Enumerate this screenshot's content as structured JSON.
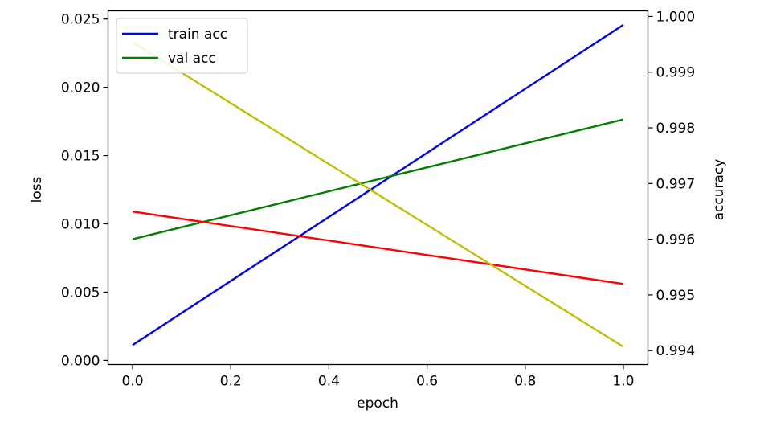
{
  "chart_data": {
    "type": "line",
    "title": "",
    "xlabel": "epoch",
    "ylabel_left": "loss",
    "ylabel_right": "accuracy",
    "x": [
      0.0,
      1.0
    ],
    "xlim": [
      -0.05,
      1.05
    ],
    "ylim_left": [
      -0.0003,
      0.0256
    ],
    "ylim_right": [
      0.99375,
      1.0001
    ],
    "xticks": [
      "0.0",
      "0.2",
      "0.4",
      "0.6",
      "0.8",
      "1.0"
    ],
    "yticks_left": [
      "0.000",
      "0.005",
      "0.010",
      "0.015",
      "0.020",
      "0.025"
    ],
    "yticks_right": [
      "0.994",
      "0.995",
      "0.996",
      "0.997",
      "0.998",
      "0.999",
      "1.000"
    ],
    "grid": false,
    "legend": {
      "placement": "top-left",
      "entries": [
        "train acc",
        "val acc"
      ]
    },
    "series": [
      {
        "name": "train acc",
        "axis": "right",
        "color": "#0000ff",
        "values": [
          0.9941,
          0.99985
        ]
      },
      {
        "name": "val acc",
        "axis": "right",
        "color": "#008000",
        "values": [
          0.996,
          0.99815
        ]
      },
      {
        "axis": "left",
        "color": "#ff0000",
        "values": [
          0.0109,
          0.0056
        ]
      },
      {
        "axis": "left",
        "color": "#bfbf00",
        "values": [
          0.0233,
          0.001
        ]
      }
    ]
  }
}
